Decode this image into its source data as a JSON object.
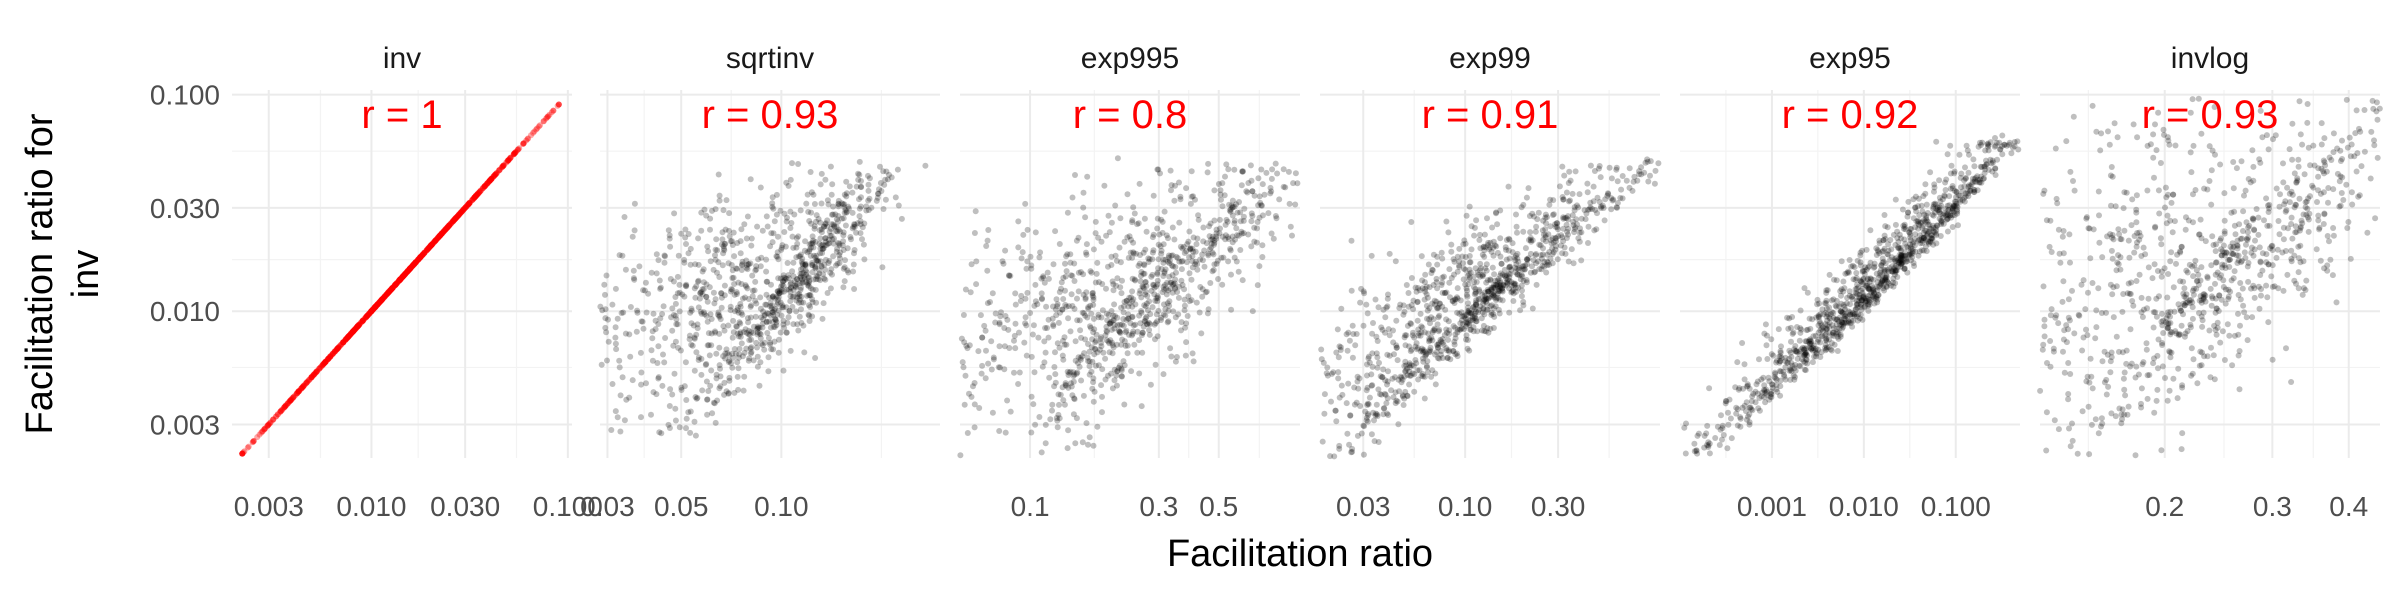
{
  "chart_data": {
    "type": "scatter",
    "xlabel": "Facilitation ratio",
    "ylabel_lines": [
      "Facilitation ratio for",
      "inv"
    ],
    "y_scale": "log10",
    "x_scale": "log10",
    "ylim": [
      0.0021,
      0.105
    ],
    "y_ticks": [
      0.003,
      0.01,
      0.03,
      0.1
    ],
    "y_tick_labels": [
      "0.003",
      "0.010",
      "0.030",
      "0.100"
    ],
    "y_minor": [
      0.0055,
      0.0173,
      0.0548
    ],
    "grid": true,
    "highlight_color": "#ff0000",
    "point_color": "#000000",
    "panels": [
      {
        "id": "inv",
        "title": "inv",
        "r_label": "r = 1",
        "color": "#ff0000",
        "alpha": 0.35,
        "xlim": [
          0.00195,
          0.105
        ],
        "x_ticks": [
          0.003,
          0.01,
          0.03,
          0.1
        ],
        "x_tick_labels": [
          "0.003",
          "0.010",
          "0.030",
          "0.100"
        ],
        "x_minor": [
          0.0055,
          0.0173,
          0.0548
        ],
        "gen": {
          "kind": "identity",
          "n": 900
        }
      },
      {
        "id": "sqrtinv",
        "title": "sqrtinv",
        "r_label": "r = 0.93",
        "color": "#000000",
        "alpha": 0.25,
        "xlim": [
          0.0285,
          0.3
        ],
        "x_ticks": [
          0.03,
          0.05,
          0.1
        ],
        "x_tick_labels": [
          "0.03",
          "0.05",
          "0.10"
        ],
        "x_minor": [
          0.0387,
          0.0707,
          0.2
        ],
        "gen": {
          "kind": "power",
          "n": 1000,
          "x0": 0.044,
          "x1": 0.17,
          "y0": 0.0028,
          "y1": 0.045,
          "curv": 0.2,
          "spread": 0.12,
          "skew": 0.6
        }
      },
      {
        "id": "exp995",
        "title": "exp995",
        "r_label": "r = 0.8",
        "color": "#000000",
        "alpha": 0.25,
        "xlim": [
          0.055,
          1.0
        ],
        "x_ticks": [
          0.1,
          0.3,
          0.5
        ],
        "x_tick_labels": [
          "0.1",
          "0.3",
          "0.5"
        ],
        "x_minor": [
          0.173,
          0.387,
          0.707
        ],
        "gen": {
          "kind": "power",
          "n": 1000,
          "x0": 0.09,
          "x1": 0.8,
          "y0": 0.0022,
          "y1": 0.045,
          "curv": -0.45,
          "spread": 0.2,
          "skew": 0.45
        }
      },
      {
        "id": "exp99",
        "title": "exp99",
        "r_label": "r = 0.91",
        "color": "#000000",
        "alpha": 0.25,
        "xlim": [
          0.018,
          1.0
        ],
        "x_ticks": [
          0.03,
          0.1,
          0.3
        ],
        "x_tick_labels": [
          "0.03",
          "0.10",
          "0.30"
        ],
        "x_minor": [
          0.0548,
          0.173,
          0.548
        ],
        "gen": {
          "kind": "power",
          "n": 1000,
          "x0": 0.02,
          "x1": 0.7,
          "y0": 0.0022,
          "y1": 0.045,
          "curv": -0.2,
          "spread": 0.14,
          "skew": 0.5
        }
      },
      {
        "id": "exp95",
        "title": "exp95",
        "r_label": "r = 0.92",
        "color": "#000000",
        "alpha": 0.25,
        "xlim": [
          0.0001,
          0.5
        ],
        "x_ticks": [
          0.001,
          0.01,
          0.1
        ],
        "x_tick_labels": [
          "0.001",
          "0.010",
          "0.100"
        ],
        "x_minor": [
          0.000316,
          0.00316,
          0.0316
        ],
        "gen": {
          "kind": "power",
          "n": 1000,
          "x0": 0.00015,
          "x1": 0.35,
          "y0": 0.0022,
          "y1": 0.06,
          "curv": 0.15,
          "spread": 0.12,
          "skew": 0.55
        }
      },
      {
        "id": "invlog",
        "title": "invlog",
        "r_label": "r = 0.93",
        "color": "#000000",
        "alpha": 0.25,
        "xlim": [
          0.125,
          0.45
        ],
        "x_ticks": [
          0.2,
          0.3,
          0.4
        ],
        "x_tick_labels": [
          "0.2",
          "0.3",
          "0.4"
        ],
        "x_minor": [
          0.15,
          0.25,
          0.35
        ],
        "gen": {
          "kind": "power",
          "n": 1000,
          "x0": 0.14,
          "x1": 0.42,
          "y0": 0.0022,
          "y1": 0.09,
          "curv": -0.3,
          "spread": 0.12,
          "skew": 0.55
        }
      }
    ]
  }
}
